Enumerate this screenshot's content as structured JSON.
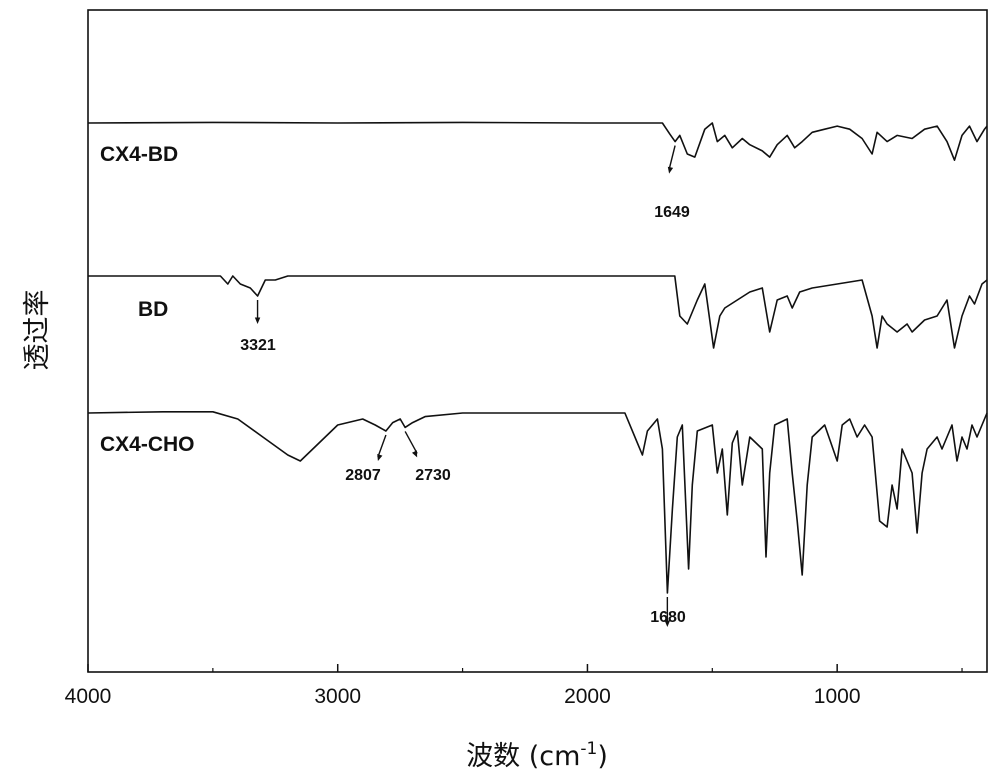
{
  "chart_data": {
    "type": "line",
    "xlabel": "波数 (cm",
    "xlabel_sup": "-1",
    "xlabel_close": ")",
    "ylabel": "透过率",
    "xlim": [
      4000,
      400
    ],
    "x_reversed": true,
    "x_ticks": [
      4000,
      3000,
      2000,
      1000
    ],
    "x_tick_labels": [
      "4000",
      "3000",
      "2000",
      "1000"
    ],
    "y_ticks_shown": false,
    "grid": false,
    "line_color": "#111111",
    "series": [
      {
        "name": "CX4-BD",
        "baseline": 0,
        "points": [
          [
            4000,
            0
          ],
          [
            3500,
            0.01
          ],
          [
            3000,
            0
          ],
          [
            2500,
            0.01
          ],
          [
            2000,
            0
          ],
          [
            1800,
            0
          ],
          [
            1700,
            0
          ],
          [
            1670,
            -0.18
          ],
          [
            1649,
            -0.3
          ],
          [
            1630,
            -0.2
          ],
          [
            1600,
            -0.5
          ],
          [
            1570,
            -0.55
          ],
          [
            1530,
            -0.1
          ],
          [
            1500,
            0
          ],
          [
            1480,
            -0.3
          ],
          [
            1450,
            -0.2
          ],
          [
            1420,
            -0.4
          ],
          [
            1380,
            -0.25
          ],
          [
            1350,
            -0.35
          ],
          [
            1300,
            -0.45
          ],
          [
            1270,
            -0.55
          ],
          [
            1240,
            -0.35
          ],
          [
            1200,
            -0.2
          ],
          [
            1170,
            -0.4
          ],
          [
            1140,
            -0.3
          ],
          [
            1100,
            -0.15
          ],
          [
            1050,
            -0.1
          ],
          [
            1000,
            -0.05
          ],
          [
            950,
            -0.1
          ],
          [
            900,
            -0.25
          ],
          [
            860,
            -0.5
          ],
          [
            840,
            -0.15
          ],
          [
            800,
            -0.3
          ],
          [
            760,
            -0.2
          ],
          [
            700,
            -0.25
          ],
          [
            650,
            -0.1
          ],
          [
            600,
            -0.05
          ],
          [
            560,
            -0.3
          ],
          [
            530,
            -0.6
          ],
          [
            500,
            -0.2
          ],
          [
            470,
            -0.05
          ],
          [
            440,
            -0.3
          ],
          [
            410,
            -0.1
          ],
          [
            400,
            -0.05
          ]
        ]
      },
      {
        "name": "BD",
        "baseline": 0,
        "points": [
          [
            4000,
            0
          ],
          [
            3470,
            0
          ],
          [
            3440,
            -0.1
          ],
          [
            3420,
            0
          ],
          [
            3390,
            -0.1
          ],
          [
            3350,
            -0.15
          ],
          [
            3321,
            -0.25
          ],
          [
            3290,
            -0.05
          ],
          [
            3250,
            -0.05
          ],
          [
            3200,
            0
          ],
          [
            3000,
            0
          ],
          [
            2500,
            0
          ],
          [
            2000,
            0
          ],
          [
            1800,
            0
          ],
          [
            1650,
            0
          ],
          [
            1630,
            -0.5
          ],
          [
            1600,
            -0.6
          ],
          [
            1560,
            -0.3
          ],
          [
            1530,
            -0.1
          ],
          [
            1495,
            -0.9
          ],
          [
            1470,
            -0.5
          ],
          [
            1450,
            -0.4
          ],
          [
            1400,
            -0.3
          ],
          [
            1350,
            -0.2
          ],
          [
            1300,
            -0.15
          ],
          [
            1270,
            -0.7
          ],
          [
            1240,
            -0.3
          ],
          [
            1200,
            -0.25
          ],
          [
            1180,
            -0.4
          ],
          [
            1150,
            -0.2
          ],
          [
            1100,
            -0.15
          ],
          [
            1000,
            -0.1
          ],
          [
            900,
            -0.05
          ],
          [
            860,
            -0.5
          ],
          [
            840,
            -0.9
          ],
          [
            820,
            -0.5
          ],
          [
            800,
            -0.6
          ],
          [
            760,
            -0.7
          ],
          [
            720,
            -0.6
          ],
          [
            700,
            -0.7
          ],
          [
            650,
            -0.55
          ],
          [
            600,
            -0.5
          ],
          [
            560,
            -0.3
          ],
          [
            530,
            -0.9
          ],
          [
            500,
            -0.5
          ],
          [
            470,
            -0.25
          ],
          [
            450,
            -0.35
          ],
          [
            420,
            -0.1
          ],
          [
            400,
            -0.05
          ]
        ]
      },
      {
        "name": "CX4-CHO",
        "baseline": 0,
        "points": [
          [
            4000,
            0
          ],
          [
            3700,
            0.01
          ],
          [
            3500,
            0.01
          ],
          [
            3400,
            -0.05
          ],
          [
            3300,
            -0.2
          ],
          [
            3200,
            -0.35
          ],
          [
            3150,
            -0.4
          ],
          [
            3100,
            -0.3
          ],
          [
            3000,
            -0.1
          ],
          [
            2900,
            -0.05
          ],
          [
            2850,
            -0.1
          ],
          [
            2807,
            -0.15
          ],
          [
            2780,
            -0.08
          ],
          [
            2750,
            -0.05
          ],
          [
            2730,
            -0.12
          ],
          [
            2700,
            -0.08
          ],
          [
            2650,
            -0.03
          ],
          [
            2500,
            0
          ],
          [
            2000,
            0
          ],
          [
            1850,
            0
          ],
          [
            1780,
            -0.35
          ],
          [
            1760,
            -0.15
          ],
          [
            1720,
            -0.05
          ],
          [
            1700,
            -0.3
          ],
          [
            1680,
            -1.5
          ],
          [
            1660,
            -0.8
          ],
          [
            1640,
            -0.2
          ],
          [
            1620,
            -0.1
          ],
          [
            1595,
            -1.3
          ],
          [
            1580,
            -0.6
          ],
          [
            1560,
            -0.15
          ],
          [
            1500,
            -0.1
          ],
          [
            1480,
            -0.5
          ],
          [
            1460,
            -0.3
          ],
          [
            1440,
            -0.85
          ],
          [
            1420,
            -0.25
          ],
          [
            1400,
            -0.15
          ],
          [
            1380,
            -0.6
          ],
          [
            1350,
            -0.2
          ],
          [
            1300,
            -0.3
          ],
          [
            1285,
            -1.2
          ],
          [
            1270,
            -0.5
          ],
          [
            1250,
            -0.1
          ],
          [
            1200,
            -0.05
          ],
          [
            1180,
            -0.5
          ],
          [
            1160,
            -0.9
          ],
          [
            1140,
            -1.35
          ],
          [
            1120,
            -0.6
          ],
          [
            1100,
            -0.2
          ],
          [
            1050,
            -0.1
          ],
          [
            1000,
            -0.4
          ],
          [
            980,
            -0.1
          ],
          [
            950,
            -0.05
          ],
          [
            920,
            -0.2
          ],
          [
            890,
            -0.1
          ],
          [
            860,
            -0.2
          ],
          [
            830,
            -0.9
          ],
          [
            800,
            -0.95
          ],
          [
            780,
            -0.6
          ],
          [
            760,
            -0.8
          ],
          [
            740,
            -0.3
          ],
          [
            700,
            -0.5
          ],
          [
            680,
            -1.0
          ],
          [
            660,
            -0.5
          ],
          [
            640,
            -0.3
          ],
          [
            600,
            -0.2
          ],
          [
            580,
            -0.3
          ],
          [
            560,
            -0.2
          ],
          [
            540,
            -0.1
          ],
          [
            520,
            -0.4
          ],
          [
            500,
            -0.2
          ],
          [
            480,
            -0.3
          ],
          [
            460,
            -0.1
          ],
          [
            440,
            -0.2
          ],
          [
            420,
            -0.1
          ],
          [
            400,
            0
          ]
        ]
      }
    ],
    "annotations": [
      {
        "series": "CX4-BD",
        "x": 1649,
        "label": "1649"
      },
      {
        "series": "BD",
        "x": 3321,
        "label": "3321"
      },
      {
        "series": "CX4-CHO",
        "x": 2807,
        "label": "2807"
      },
      {
        "series": "CX4-CHO",
        "x": 2730,
        "label": "2730"
      },
      {
        "series": "CX4-CHO",
        "x": 1680,
        "label": "1680"
      }
    ]
  }
}
